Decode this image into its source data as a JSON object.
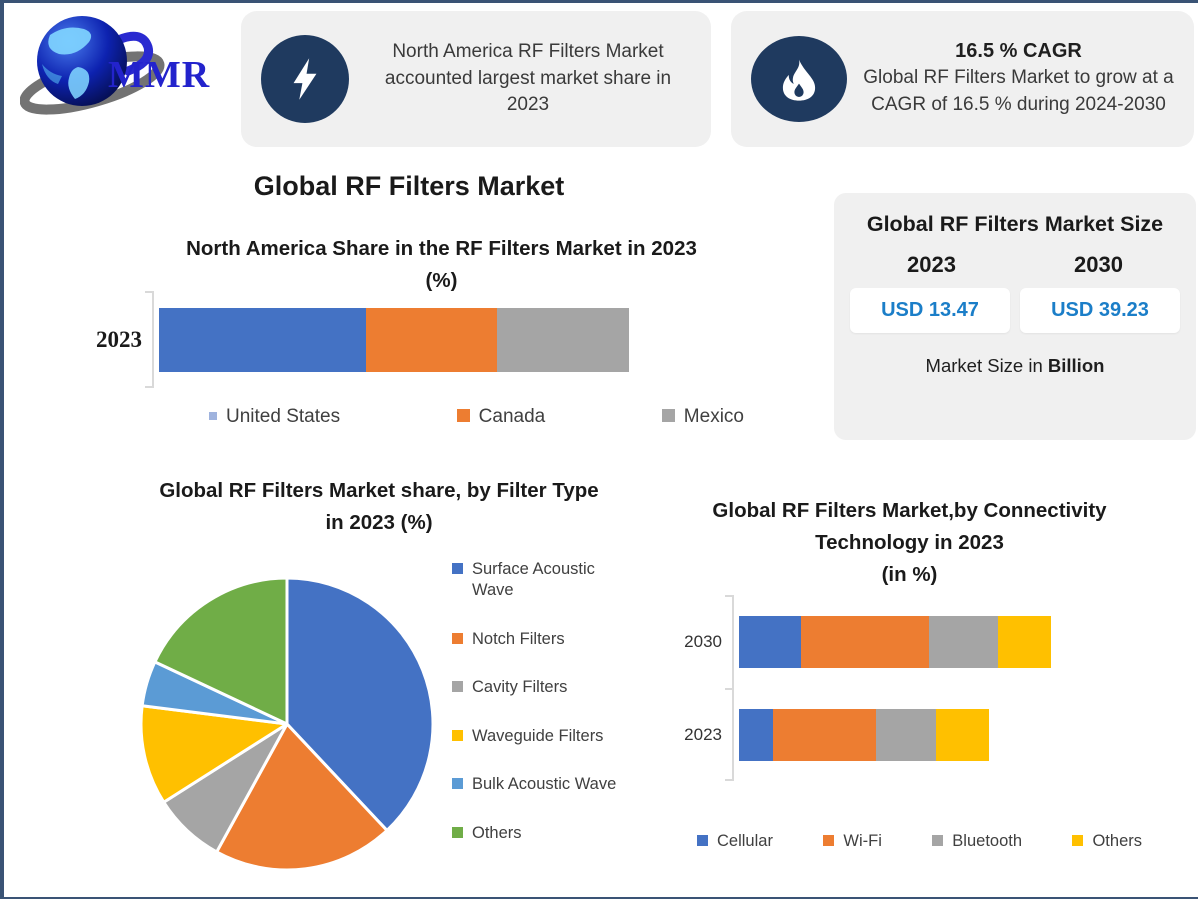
{
  "brand": {
    "logo_text": "MMR"
  },
  "callouts": [
    {
      "icon": "lightning-icon",
      "text": "North America RF Filters Market accounted largest market share in 2023"
    },
    {
      "icon": "flame-icon",
      "heading": "16.5 % CAGR",
      "text": "Global RF Filters Market to grow at a CAGR of 16.5 % during 2024-2030"
    }
  ],
  "main_title": "Global RF Filters Market",
  "size_panel": {
    "title": "Global RF Filters Market Size",
    "years": [
      "2023",
      "2030"
    ],
    "values": [
      "USD 13.47",
      "USD 39.23"
    ],
    "note_prefix": "Market Size in ",
    "note_bold": "Billion"
  },
  "colors": {
    "navy_icon": "#1F3A5F",
    "panel_bg": "#f0f0f0",
    "value_blue": "#1B7EC8",
    "page_border": "#3A5375"
  },
  "chart_data": [
    {
      "type": "bar",
      "orientation": "horizontal-stacked",
      "title": "North America Share in the RF Filters Market in 2023",
      "subtitle": "(%)",
      "categories": [
        "2023"
      ],
      "xlim": [
        0,
        100
      ],
      "legend_position": "bottom",
      "series": [
        {
          "name": "United States",
          "color": "#4472C4",
          "values": [
            44
          ],
          "legend_marker_color": "#9FB3DE",
          "legend_marker_small": true
        },
        {
          "name": "Canada",
          "color": "#ED7D31",
          "values": [
            28
          ]
        },
        {
          "name": "Mexico",
          "color": "#A5A5A5",
          "values": [
            28
          ]
        }
      ]
    },
    {
      "type": "pie",
      "title": "Global RF Filters Market share, by Filter Type in 2023  (%)",
      "labels": [
        "Surface Acoustic Wave",
        "Notch Filters",
        "Cavity Filters",
        "Waveguide Filters",
        "Bulk Acoustic Wave",
        "Others"
      ],
      "values": [
        38,
        20,
        8,
        11,
        5,
        18
      ],
      "colors": [
        "#4472C4",
        "#ED7D31",
        "#A5A5A5",
        "#FFC000",
        "#5B9BD5",
        "#70AD47"
      ],
      "start_angle_deg": 0,
      "direction": "clockwise",
      "legend_position": "right"
    },
    {
      "type": "bar",
      "orientation": "horizontal-stacked",
      "title": "Global RF Filters Market,by Connectivity Technology in 2023",
      "subtitle": "(in %)",
      "categories": [
        "2030",
        "2023"
      ],
      "xlim": [
        0,
        100
      ],
      "legend_position": "bottom",
      "series": [
        {
          "name": "Cellular",
          "color": "#4472C4",
          "values": [
            20,
            11
          ]
        },
        {
          "name": "Wi-Fi",
          "color": "#ED7D31",
          "values": [
            41,
            33
          ]
        },
        {
          "name": "Bluetooth",
          "color": "#A5A5A5",
          "values": [
            22,
            19
          ]
        },
        {
          "name": "Others",
          "color": "#FFC000",
          "values": [
            17,
            17
          ]
        }
      ]
    }
  ]
}
